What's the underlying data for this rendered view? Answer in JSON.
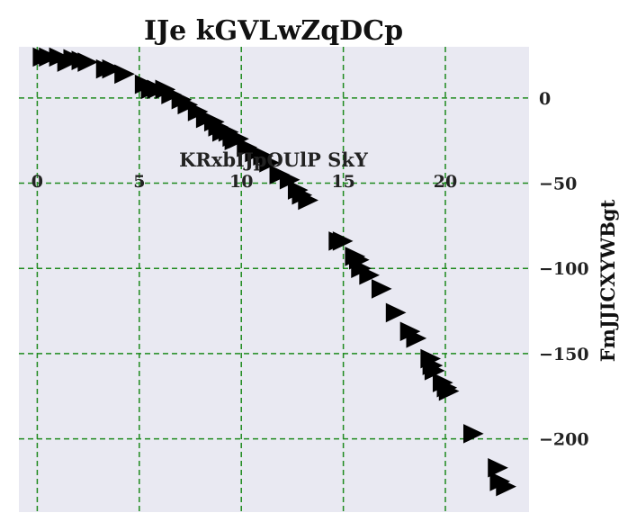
{
  "chart_data": {
    "type": "scatter",
    "title": "IJe kGVLwZqDCp",
    "xlabel": "KRxbIJpOUlP SkY",
    "ylabel": "FmJJICXYWBgt",
    "xlim": [
      -0.9,
      24.1
    ],
    "ylim": [
      -243,
      30
    ],
    "x_ticks": [
      0,
      5,
      10,
      15,
      20
    ],
    "y_ticks": [
      0,
      -50,
      -100,
      -150,
      -200
    ],
    "x_tick_labels": [
      "0",
      "5",
      "10",
      "15",
      "20"
    ],
    "y_tick_labels": [
      "0",
      "−50",
      "−100",
      "−150",
      "−200"
    ],
    "xaxis_position": "top-inside",
    "yaxis_position": "right",
    "grid": true,
    "colors": {
      "background": "#e9e9f2",
      "grid": "#1e8a1e",
      "marker": "#000000"
    },
    "marker": "triangle-right",
    "points": [
      {
        "x": 0.2,
        "y": 24
      },
      {
        "x": 0.5,
        "y": 24
      },
      {
        "x": 1.0,
        "y": 24
      },
      {
        "x": 1.4,
        "y": 21
      },
      {
        "x": 1.7,
        "y": 23
      },
      {
        "x": 2.1,
        "y": 22
      },
      {
        "x": 2.4,
        "y": 21
      },
      {
        "x": 3.3,
        "y": 17
      },
      {
        "x": 3.6,
        "y": 17
      },
      {
        "x": 4.2,
        "y": 14
      },
      {
        "x": 5.2,
        "y": 8
      },
      {
        "x": 5.5,
        "y": 5
      },
      {
        "x": 5.8,
        "y": 5
      },
      {
        "x": 6.2,
        "y": 5
      },
      {
        "x": 6.5,
        "y": 2
      },
      {
        "x": 7.0,
        "y": -1
      },
      {
        "x": 7.3,
        "y": -4
      },
      {
        "x": 7.8,
        "y": -8
      },
      {
        "x": 8.2,
        "y": -12
      },
      {
        "x": 8.6,
        "y": -14
      },
      {
        "x": 8.8,
        "y": -17
      },
      {
        "x": 9.0,
        "y": -20
      },
      {
        "x": 9.3,
        "y": -20
      },
      {
        "x": 9.5,
        "y": -23
      },
      {
        "x": 9.6,
        "y": -25
      },
      {
        "x": 9.8,
        "y": -24
      },
      {
        "x": 10.2,
        "y": -29
      },
      {
        "x": 10.6,
        "y": -32
      },
      {
        "x": 11.0,
        "y": -34
      },
      {
        "x": 11.3,
        "y": -38
      },
      {
        "x": 11.8,
        "y": -45
      },
      {
        "x": 12.3,
        "y": -48
      },
      {
        "x": 12.7,
        "y": -54
      },
      {
        "x": 12.9,
        "y": -57
      },
      {
        "x": 13.2,
        "y": -60
      },
      {
        "x": 14.7,
        "y": -84
      },
      {
        "x": 14.9,
        "y": -84
      },
      {
        "x": 15.5,
        "y": -93
      },
      {
        "x": 15.7,
        "y": -95
      },
      {
        "x": 15.8,
        "y": -100
      },
      {
        "x": 16.2,
        "y": -104
      },
      {
        "x": 16.8,
        "y": -112
      },
      {
        "x": 17.5,
        "y": -126
      },
      {
        "x": 18.2,
        "y": -137
      },
      {
        "x": 18.5,
        "y": -141
      },
      {
        "x": 19.2,
        "y": -153
      },
      {
        "x": 19.3,
        "y": -157
      },
      {
        "x": 19.4,
        "y": -160
      },
      {
        "x": 19.8,
        "y": -167
      },
      {
        "x": 20.0,
        "y": -170
      },
      {
        "x": 20.1,
        "y": -172
      },
      {
        "x": 21.3,
        "y": -197
      },
      {
        "x": 22.5,
        "y": -217
      },
      {
        "x": 22.6,
        "y": -225
      },
      {
        "x": 22.9,
        "y": -228
      }
    ]
  }
}
